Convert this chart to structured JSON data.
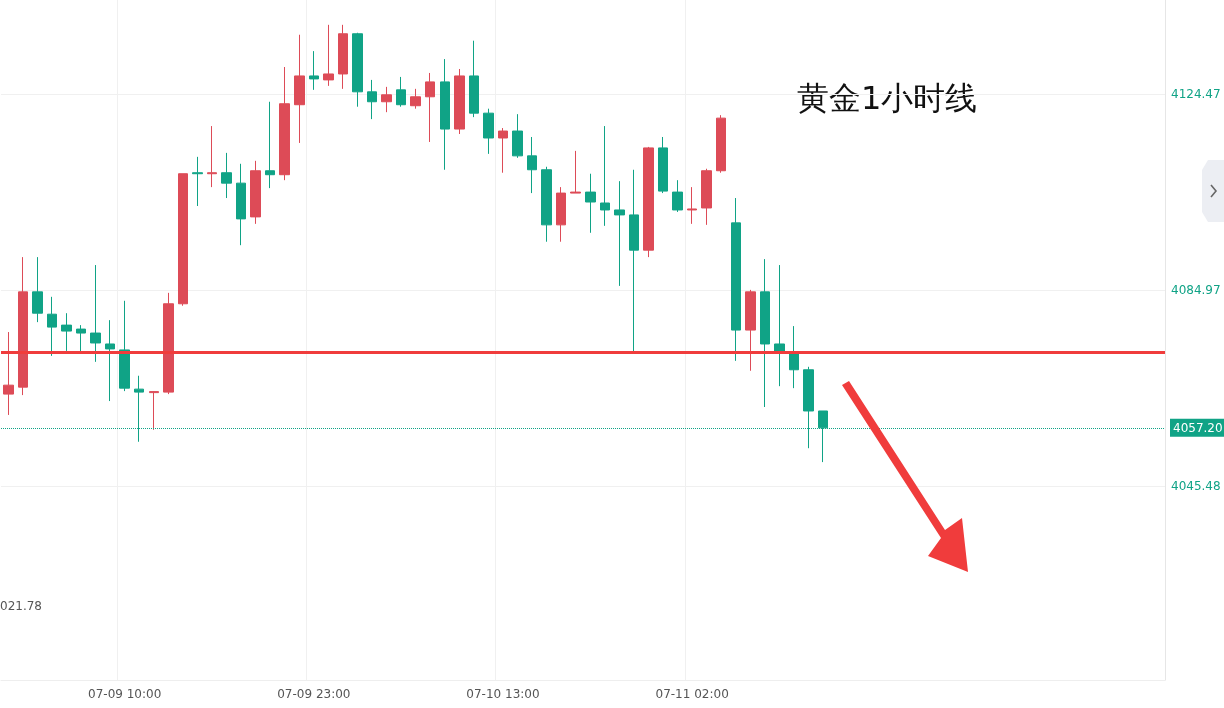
{
  "chart_data": {
    "type": "candlestick",
    "title": "黄金1小时线",
    "categories": [
      null,
      null,
      null,
      null,
      null,
      null,
      null,
      null,
      "07-09 10:00",
      null,
      null,
      null,
      null,
      null,
      null,
      null,
      null,
      null,
      null,
      null,
      null,
      "07-09 23:00",
      null,
      null,
      null,
      null,
      null,
      null,
      null,
      null,
      null,
      null,
      null,
      null,
      "07-10 13:00",
      null,
      null,
      null,
      null,
      null,
      null,
      null,
      null,
      null,
      null,
      null,
      null,
      "07-11 02:00",
      null,
      null,
      null,
      null,
      null,
      null,
      null,
      null,
      null,
      null,
      null,
      null,
      null,
      null,
      null,
      null,
      null,
      null,
      null,
      null,
      null,
      null,
      null,
      null,
      null,
      null,
      null,
      null,
      null,
      null,
      null,
      null
    ],
    "colors": [
      "#dd4b57",
      "#dd4b57",
      "#10a386",
      "#10a386",
      "#10a386",
      "#10a386",
      "#10a386",
      "#10a386",
      "#10a386",
      "#10a386",
      "#dd4b57",
      "#dd4b57",
      "#dd4b57",
      "#10a386",
      "#dd4b57",
      "#10a386",
      "#10a386",
      "#dd4b57",
      "#10a386",
      "#dd4b57",
      "#dd4b57",
      "#10a386",
      "#dd4b57",
      "#dd4b57",
      "#10a386",
      "#10a386",
      "#dd4b57",
      "#10a386",
      "#dd4b57",
      "#dd4b57",
      "#10a386",
      "#dd4b57",
      "#10a386",
      "#10a386",
      "#dd4b57",
      "#10a386",
      "#10a386",
      "#10a386",
      "#dd4b57",
      "#dd4b57",
      "#10a386",
      "#10a386",
      "#10a386",
      "#10a386",
      "#dd4b57",
      "#10a386",
      "#10a386",
      "#dd4b57",
      "#dd4b57",
      "#dd4b57",
      "#10a386",
      "#dd4b57",
      "#10a386",
      "#10a386",
      "#10a386",
      "#10a386",
      "#10a386",
      null,
      null,
      null,
      null,
      null,
      null,
      null,
      null,
      null,
      null,
      null,
      null,
      null,
      null,
      null,
      null,
      null,
      null,
      null,
      null,
      null,
      null,
      null
    ],
    "ohlc": [
      [
        4064.0,
        4076.5,
        4059.8,
        4065.8
      ],
      [
        4065.4,
        4091.6,
        4063.8,
        4084.6
      ],
      [
        4084.6,
        4091.6,
        4078.5,
        4080.3
      ],
      [
        4080.1,
        4083.6,
        4071.7,
        4077.5
      ],
      [
        4077.9,
        4080.3,
        4072.7,
        4076.7
      ],
      [
        4077.1,
        4077.9,
        4072.3,
        4076.3
      ],
      [
        4076.3,
        4090.0,
        4070.5,
        4074.3
      ],
      [
        4074.1,
        4078.9,
        4062.6,
        4073.1
      ],
      [
        4072.9,
        4082.8,
        4064.6,
        4065.2
      ],
      [
        4065.0,
        4067.7,
        4054.4,
        4064.4
      ],
      [
        4064.3,
        4064.6,
        4056.8,
        4064.5
      ],
      [
        4064.4,
        4084.4,
        4064.0,
        4082.2
      ],
      [
        4082.2,
        4108.4,
        4081.8,
        4108.4
      ],
      [
        4108.6,
        4111.8,
        4101.9,
        4108.4
      ],
      [
        4108.4,
        4118.0,
        4105.7,
        4108.6
      ],
      [
        4108.6,
        4112.6,
        4103.5,
        4106.5
      ],
      [
        4106.5,
        4110.4,
        4094.0,
        4099.3
      ],
      [
        4099.7,
        4111.0,
        4098.3,
        4109.0
      ],
      [
        4109.0,
        4122.9,
        4105.5,
        4108.2
      ],
      [
        4108.2,
        4129.9,
        4107.1,
        4122.5
      ],
      [
        4122.3,
        4136.4,
        4114.6,
        4128.1
      ],
      [
        4128.1,
        4133.1,
        4125.3,
        4127.5
      ],
      [
        4127.3,
        4138.4,
        4126.1,
        4128.5
      ],
      [
        4128.5,
        4138.4,
        4125.5,
        4136.6
      ],
      [
        4136.6,
        4136.8,
        4121.9,
        4124.9
      ],
      [
        4124.9,
        4127.3,
        4119.4,
        4122.9
      ],
      [
        4122.9,
        4125.9,
        4120.8,
        4124.3
      ],
      [
        4125.3,
        4127.9,
        4121.9,
        4122.3
      ],
      [
        4122.1,
        4125.5,
        4121.5,
        4123.9
      ],
      [
        4123.9,
        4128.7,
        4114.8,
        4126.9
      ],
      [
        4126.9,
        4131.5,
        4109.2,
        4117.4
      ],
      [
        4117.4,
        4129.5,
        4116.4,
        4128.1
      ],
      [
        4128.1,
        4135.2,
        4119.8,
        4120.6
      ],
      [
        4120.6,
        4121.5,
        4112.4,
        4115.6
      ],
      [
        4115.6,
        4117.6,
        4108.6,
        4117.0
      ],
      [
        4117.0,
        4120.4,
        4111.6,
        4112.0
      ],
      [
        4112.0,
        4115.8,
        4104.5,
        4109.2
      ],
      [
        4109.2,
        4109.8,
        4094.7,
        4098.1
      ],
      [
        4098.1,
        4105.7,
        4094.7,
        4104.5
      ],
      [
        4104.5,
        4113.0,
        4104.5,
        4104.7
      ],
      [
        4104.7,
        4108.4,
        4096.5,
        4102.7
      ],
      [
        4102.5,
        4118.0,
        4097.9,
        4101.1
      ],
      [
        4101.1,
        4106.9,
        4085.8,
        4100.1
      ],
      [
        4100.1,
        4109.2,
        4072.5,
        4093.0
      ],
      [
        4093.0,
        4113.8,
        4091.6,
        4113.6
      ],
      [
        4113.6,
        4115.8,
        4104.5,
        4104.9
      ],
      [
        4104.7,
        4107.1,
        4100.7,
        4101.1
      ],
      [
        4101.1,
        4105.7,
        4098.3,
        4101.3
      ],
      [
        4101.5,
        4109.4,
        4098.1,
        4109.0
      ],
      [
        4109.0,
        4120.2,
        4108.6,
        4119.6
      ],
      [
        4098.5,
        4103.5,
        4070.7,
        4076.9
      ],
      [
        4076.9,
        4085.0,
        4068.7,
        4084.6
      ],
      [
        4084.6,
        4091.2,
        4061.4,
        4074.1
      ],
      [
        4074.1,
        4090.0,
        4065.6,
        4072.5
      ],
      [
        4072.5,
        4077.7,
        4065.2,
        4068.9
      ],
      [
        4068.9,
        4069.5,
        4053.1,
        4060.6
      ],
      [
        4060.6,
        4060.6,
        4050.3,
        4057.2
      ],
      null,
      null,
      null,
      null,
      null,
      null,
      null,
      null,
      null,
      null,
      null,
      null,
      null,
      null,
      null,
      null,
      null,
      null,
      null,
      null,
      null,
      null,
      null
    ],
    "ylim": [
      4006.4,
      4143.4
    ],
    "yticks": [
      4045.48,
      4084.97,
      4124.47
    ],
    "grid": true,
    "ref_lines": [
      {
        "axis": "y",
        "value": 4072.5,
        "color": "#f03c3c",
        "line_style": "solid"
      },
      {
        "axis": "y",
        "value": 4057.2,
        "label": "4057.20",
        "color": "#10a386",
        "line_style": "dotted"
      }
    ],
    "annotations": [
      "021.78"
    ]
  }
}
